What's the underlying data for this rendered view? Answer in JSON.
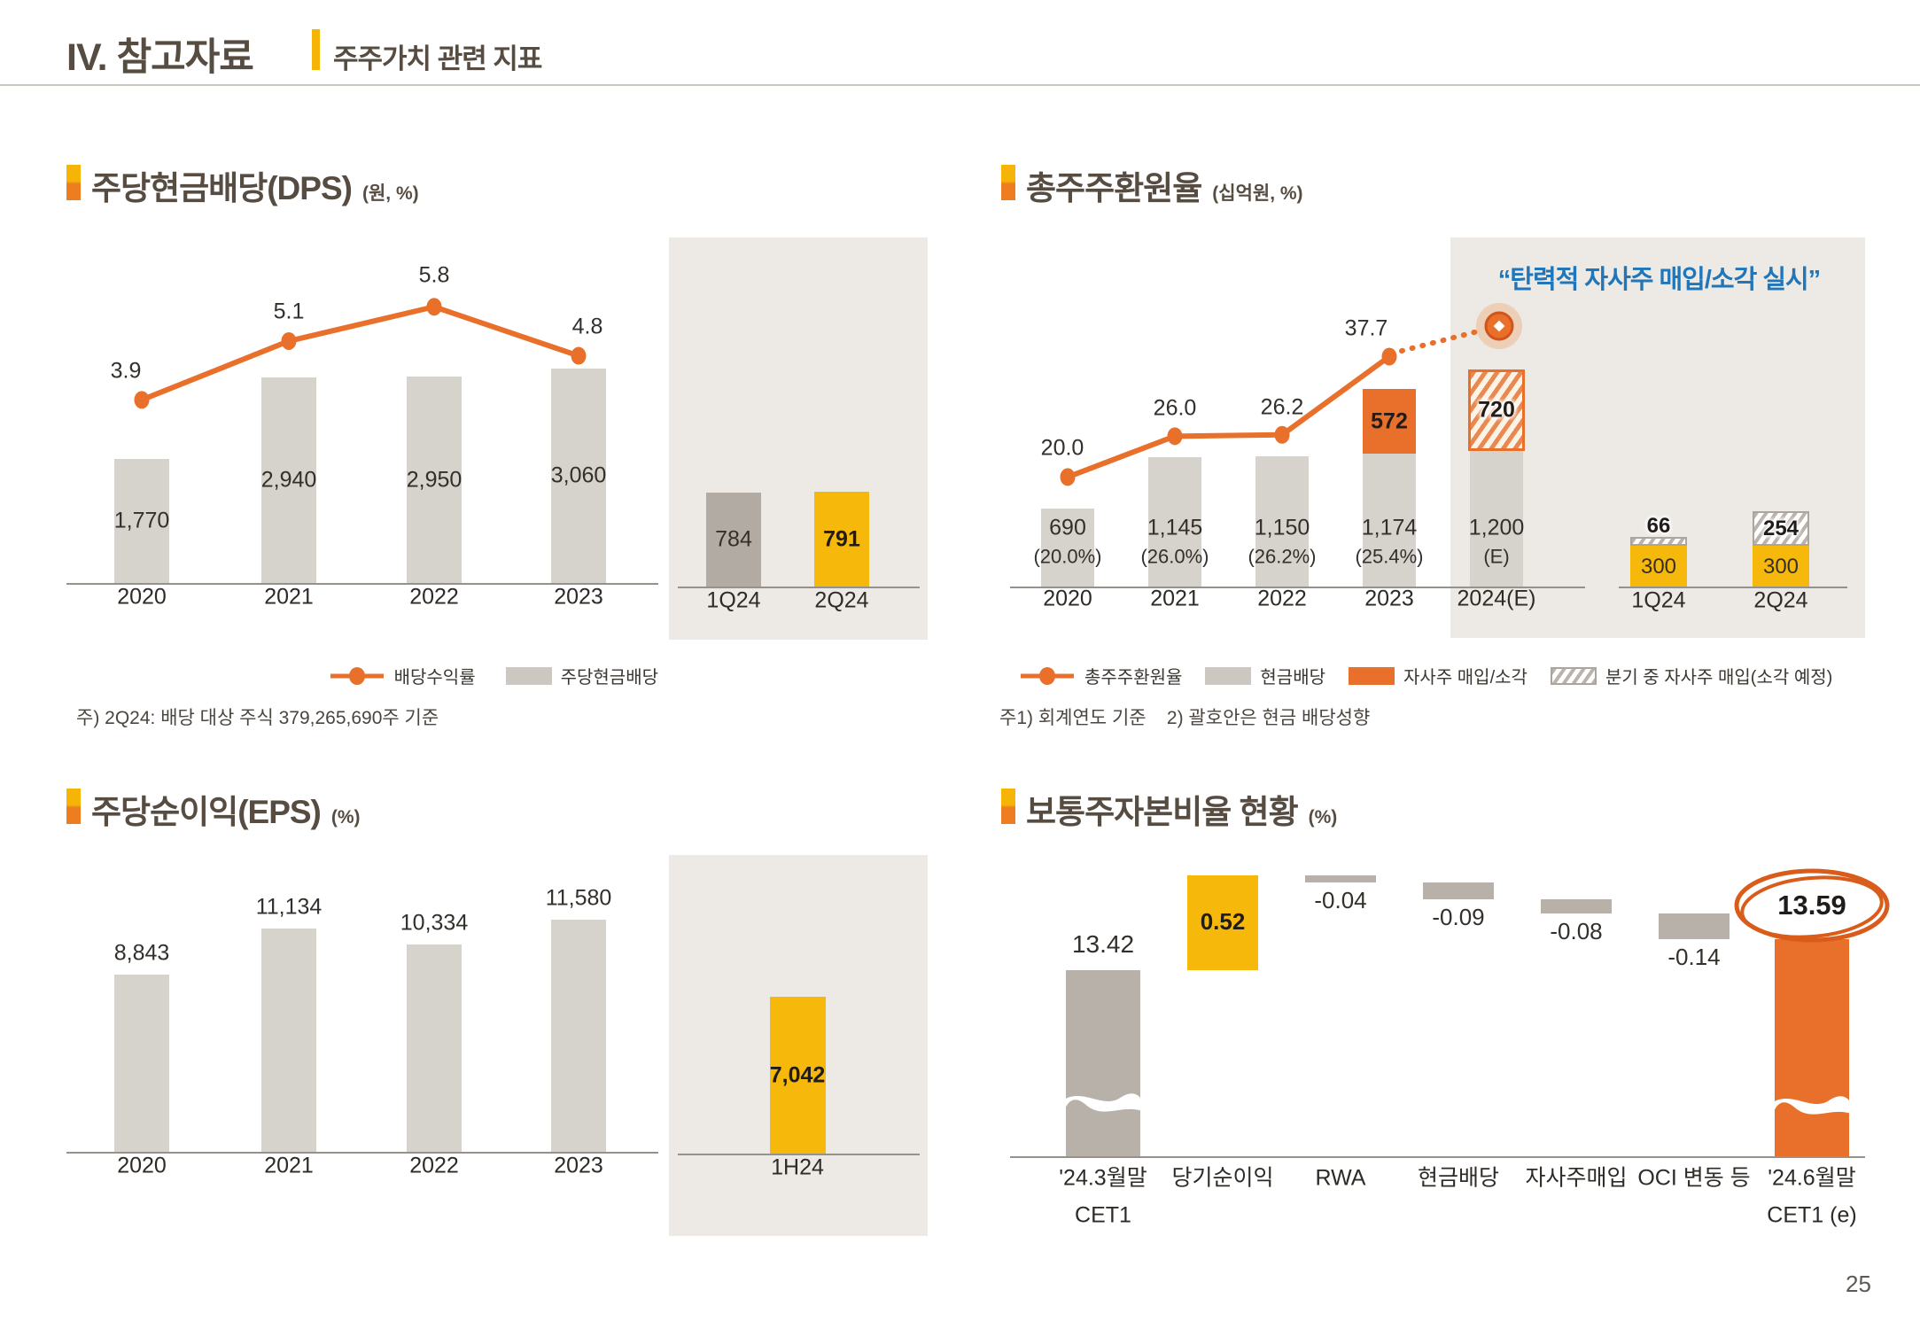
{
  "page": {
    "number": "25"
  },
  "header": {
    "title": "IV. 참고자료",
    "subtitle": "주주가치 관련 지표"
  },
  "colors": {
    "orange": "#E8702A",
    "yellow": "#F7B80C",
    "gray_bar": "#D6D2CC",
    "dark_gray_bar": "#B2ABA4",
    "waterfall_gray": "#B7B1AA",
    "panel_bg": "#EDEAE5",
    "blue": "#2076B8",
    "title": "#564C41"
  },
  "sections": [
    {
      "id": "dps",
      "title": "주당현금배당(DPS)",
      "unit": "(원, %)"
    },
    {
      "id": "tsr",
      "title": "총주주환원율",
      "unit": "(십억원, %)"
    },
    {
      "id": "eps",
      "title": "주당순이익(EPS)",
      "unit": "(%)"
    },
    {
      "id": "cet1",
      "title": "보통주자본비율 현황",
      "unit": "(%)"
    }
  ],
  "chart_data": [
    {
      "id": "dps",
      "type": "bar+line",
      "categories": [
        "2020",
        "2021",
        "2022",
        "2023"
      ],
      "bars": {
        "name": "주당현금배당",
        "values": [
          1770,
          2940,
          2950,
          3060
        ],
        "labels": [
          "1,770",
          "2,940",
          "2,950",
          "3,060"
        ]
      },
      "line": {
        "name": "배당수익률",
        "values": [
          3.9,
          5.1,
          5.8,
          4.8
        ],
        "labels": [
          "3.9",
          "5.1",
          "5.8",
          "4.8"
        ]
      },
      "panel": {
        "categories": [
          "1Q24",
          "2Q24"
        ],
        "values": [
          784,
          791
        ],
        "labels": [
          "784",
          "791"
        ],
        "styles": [
          "gray",
          "yellow"
        ]
      },
      "legend": [
        {
          "marker": "line",
          "label": "배당수익률"
        },
        {
          "marker": "graybox",
          "label": "주당현금배당"
        }
      ],
      "footnote": "주) 2Q24: 배당 대상 주식 379,265,690주 기준"
    },
    {
      "id": "tsr",
      "type": "stacked-bar+line",
      "categories": [
        "2020",
        "2021",
        "2022",
        "2023",
        "2024(E)"
      ],
      "cash": {
        "name": "현금배당",
        "values": [
          690,
          1145,
          1150,
          1174,
          1200
        ],
        "labels": [
          [
            "690",
            "(20.0%)"
          ],
          [
            "1,145",
            "(26.0%)"
          ],
          [
            "1,150",
            "(26.2%)"
          ],
          [
            "1,174",
            "(25.4%)"
          ],
          [
            "1,200",
            "(E)"
          ]
        ]
      },
      "buyback": {
        "name": "자사주 매입/소각",
        "index": 3,
        "value": 572,
        "label": "572"
      },
      "planned": {
        "name": "분기 중 자사주 매입(소각 예정)",
        "index": 4,
        "value": 720,
        "label": "720"
      },
      "line": {
        "name": "총주주환원율",
        "values": [
          20.0,
          26.0,
          26.2,
          37.7
        ],
        "labels": [
          "20.0",
          "26.0",
          "26.2",
          "37.7"
        ]
      },
      "callout": "“탄력적 자사주 매입/소각 실시”",
      "panel": {
        "categories": [
          "1Q24",
          "2Q24"
        ],
        "cash_values": [
          300,
          300
        ],
        "cash_labels": [
          "300",
          "300"
        ],
        "planned_values": [
          66,
          254
        ],
        "planned_labels": [
          "66",
          "254"
        ]
      },
      "legend": [
        {
          "marker": "line",
          "label": "총주주환원율"
        },
        {
          "marker": "graybox",
          "label": "현금배당"
        },
        {
          "marker": "orangebox",
          "label": "자사주 매입/소각"
        },
        {
          "marker": "hatchbox",
          "label": "분기 중 자사주 매입(소각 예정)"
        }
      ],
      "footnote": "주1) 회계연도 기준    2) 괄호안은 현금 배당성향"
    },
    {
      "id": "eps",
      "type": "bar",
      "categories": [
        "2020",
        "2021",
        "2022",
        "2023"
      ],
      "bars": {
        "name": "주당순이익",
        "values": [
          8843,
          11134,
          10334,
          11580
        ],
        "labels": [
          "8,843",
          "11,134",
          "10,334",
          "11,580"
        ]
      },
      "panel": {
        "categories": [
          "1H24"
        ],
        "values": [
          7042
        ],
        "labels": [
          "7,042"
        ],
        "styles": [
          "yellow"
        ]
      }
    },
    {
      "id": "cet1",
      "type": "waterfall",
      "columns": [
        {
          "label_lines": [
            "'24.3월말",
            "CET1"
          ],
          "value": 13.42,
          "value_label": "13.42",
          "kind": "base-gray",
          "break": true
        },
        {
          "label_lines": [
            "당기순이익"
          ],
          "value": 0.52,
          "value_label": "0.52",
          "kind": "float-yellow"
        },
        {
          "label_lines": [
            "RWA"
          ],
          "value": -0.04,
          "value_label": "-0.04",
          "kind": "float-gray"
        },
        {
          "label_lines": [
            "현금배당"
          ],
          "value": -0.09,
          "value_label": "-0.09",
          "kind": "float-gray"
        },
        {
          "label_lines": [
            "자사주매입"
          ],
          "value": -0.08,
          "value_label": "-0.08",
          "kind": "float-gray"
        },
        {
          "label_lines": [
            "OCI 변동 등"
          ],
          "value": -0.14,
          "value_label": "-0.14",
          "kind": "float-gray"
        },
        {
          "label_lines": [
            "'24.6월말",
            "CET1 (e)"
          ],
          "value": 13.59,
          "value_label": "13.59",
          "kind": "base-orange",
          "break": true,
          "circled": true
        }
      ]
    }
  ]
}
